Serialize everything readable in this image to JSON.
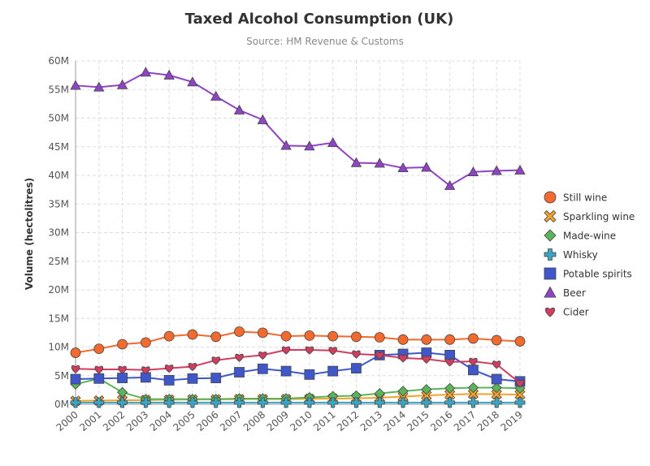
{
  "chart_data": {
    "type": "line",
    "title": "Taxed Alcohol Consumption (UK)",
    "subtitle": "Source: HM Revenue & Customs",
    "xlabel": "",
    "ylabel": "Volume (hectolitres)",
    "ylim": [
      0,
      60000000
    ],
    "y_ticks": [
      0,
      5000000,
      10000000,
      15000000,
      20000000,
      25000000,
      30000000,
      35000000,
      40000000,
      45000000,
      50000000,
      55000000,
      60000000
    ],
    "y_tick_labels": [
      "0M",
      "5M",
      "10M",
      "15M",
      "20M",
      "25M",
      "30M",
      "35M",
      "40M",
      "45M",
      "50M",
      "55M",
      "60M"
    ],
    "grid": true,
    "legend_position": "right",
    "categories": [
      "2000",
      "2001",
      "2002",
      "2003",
      "2004",
      "2005",
      "2006",
      "2007",
      "2008",
      "2009",
      "2010",
      "2011",
      "2012",
      "2013",
      "2014",
      "2015",
      "2016",
      "2017",
      "2018",
      "2019"
    ],
    "series": [
      {
        "name": "Still wine",
        "color": "#f26a2e",
        "marker": "circle",
        "values": [
          9000000,
          9700000,
          10500000,
          10800000,
          11900000,
          12200000,
          11800000,
          12700000,
          12500000,
          11900000,
          12000000,
          11900000,
          11800000,
          11700000,
          11300000,
          11300000,
          11300000,
          11500000,
          11200000,
          11000000
        ]
      },
      {
        "name": "Sparkling wine",
        "color": "#f5a12a",
        "marker": "x",
        "values": [
          600000,
          650000,
          700000,
          750000,
          800000,
          850000,
          850000,
          900000,
          900000,
          900000,
          950000,
          1000000,
          1050000,
          1150000,
          1350000,
          1550000,
          1700000,
          1800000,
          1750000,
          1700000
        ]
      },
      {
        "name": "Made-wine",
        "color": "#5bb45b",
        "marker": "diamond",
        "values": [
          3500000,
          4500000,
          2100000,
          900000,
          900000,
          900000,
          900000,
          1000000,
          1000000,
          1000000,
          1200000,
          1400000,
          1500000,
          1900000,
          2300000,
          2600000,
          2800000,
          2900000,
          2900000,
          2800000
        ]
      },
      {
        "name": "Whisky",
        "color": "#3aa6c4",
        "marker": "cross",
        "values": [
          300000,
          300000,
          300000,
          300000,
          300000,
          300000,
          300000,
          300000,
          300000,
          300000,
          300000,
          300000,
          300000,
          300000,
          300000,
          300000,
          300000,
          300000,
          300000,
          300000
        ]
      },
      {
        "name": "Potable spirits",
        "color": "#3f57c8",
        "marker": "square",
        "values": [
          4400000,
          4500000,
          4600000,
          4700000,
          4200000,
          4500000,
          4600000,
          5600000,
          6200000,
          5800000,
          5200000,
          5800000,
          6300000,
          8600000,
          8800000,
          9000000,
          8600000,
          6000000,
          4400000,
          4000000
        ]
      },
      {
        "name": "Beer",
        "color": "#8e44c4",
        "marker": "triangle",
        "values": [
          55700000,
          55400000,
          55800000,
          58000000,
          57500000,
          56300000,
          53800000,
          51400000,
          49700000,
          45200000,
          45100000,
          45700000,
          42200000,
          42100000,
          41300000,
          41400000,
          38200000,
          40600000,
          40800000,
          40900000
        ]
      },
      {
        "name": "Cider",
        "color": "#d23c5e",
        "marker": "heart",
        "values": [
          6200000,
          6100000,
          6100000,
          6000000,
          6300000,
          6600000,
          7700000,
          8200000,
          8600000,
          9500000,
          9500000,
          9400000,
          8800000,
          8600000,
          8100000,
          7900000,
          7400000,
          7500000,
          7000000,
          3700000
        ]
      }
    ]
  }
}
